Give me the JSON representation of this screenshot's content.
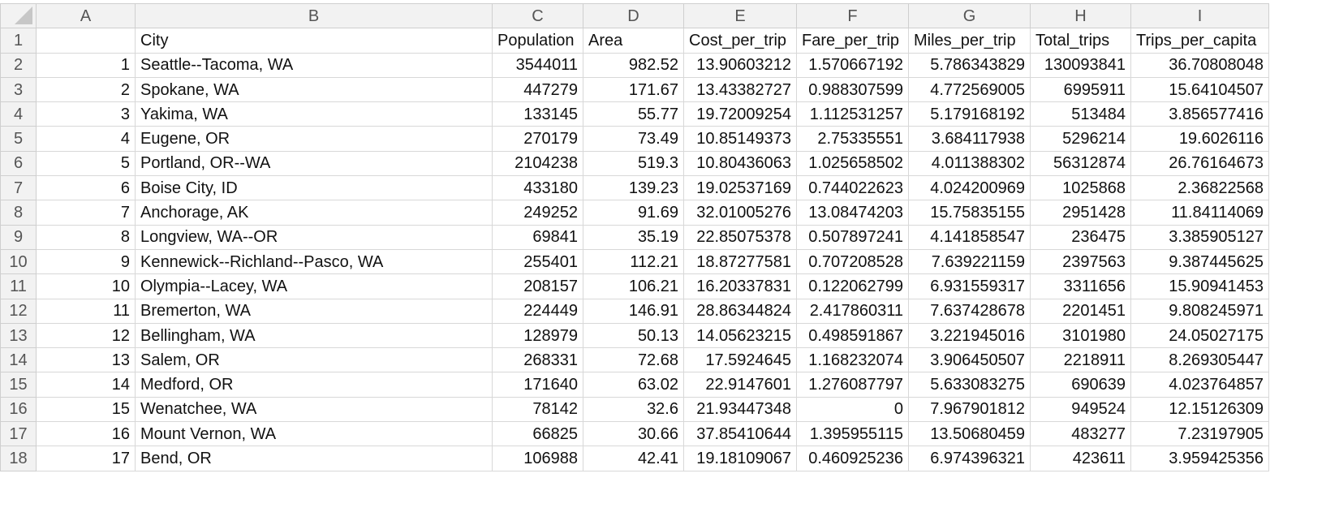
{
  "sheet": {
    "column_letters": [
      "A",
      "B",
      "C",
      "D",
      "E",
      "F",
      "G",
      "H",
      "I"
    ],
    "column_align": [
      "num",
      "txt",
      "num",
      "num",
      "num",
      "num",
      "num",
      "num",
      "num"
    ],
    "rows": [
      {
        "n": "1",
        "cells": [
          "",
          "City",
          "Population",
          "Area",
          "Cost_per_trip",
          "Fare_per_trip",
          "Miles_per_trip",
          "Total_trips",
          "Trips_per_capita"
        ],
        "header": true
      },
      {
        "n": "2",
        "cells": [
          "1",
          "Seattle--Tacoma, WA",
          "3544011",
          "982.52",
          "13.90603212",
          "1.570667192",
          "5.786343829",
          "130093841",
          "36.70808048"
        ]
      },
      {
        "n": "3",
        "cells": [
          "2",
          "Spokane, WA",
          "447279",
          "171.67",
          "13.43382727",
          "0.988307599",
          "4.772569005",
          "6995911",
          "15.64104507"
        ]
      },
      {
        "n": "4",
        "cells": [
          "3",
          "Yakima, WA",
          "133145",
          "55.77",
          "19.72009254",
          "1.112531257",
          "5.179168192",
          "513484",
          "3.856577416"
        ]
      },
      {
        "n": "5",
        "cells": [
          "4",
          "Eugene, OR",
          "270179",
          "73.49",
          "10.85149373",
          "2.75335551",
          "3.684117938",
          "5296214",
          "19.6026116"
        ]
      },
      {
        "n": "6",
        "cells": [
          "5",
          "Portland, OR--WA",
          "2104238",
          "519.3",
          "10.80436063",
          "1.025658502",
          "4.011388302",
          "56312874",
          "26.76164673"
        ]
      },
      {
        "n": "7",
        "cells": [
          "6",
          "Boise City, ID",
          "433180",
          "139.23",
          "19.02537169",
          "0.744022623",
          "4.024200969",
          "1025868",
          "2.36822568"
        ]
      },
      {
        "n": "8",
        "cells": [
          "7",
          "Anchorage, AK",
          "249252",
          "91.69",
          "32.01005276",
          "13.08474203",
          "15.75835155",
          "2951428",
          "11.84114069"
        ]
      },
      {
        "n": "9",
        "cells": [
          "8",
          "Longview, WA--OR",
          "69841",
          "35.19",
          "22.85075378",
          "0.507897241",
          "4.141858547",
          "236475",
          "3.385905127"
        ]
      },
      {
        "n": "10",
        "cells": [
          "9",
          "Kennewick--Richland--Pasco, WA",
          "255401",
          "112.21",
          "18.87277581",
          "0.707208528",
          "7.639221159",
          "2397563",
          "9.387445625"
        ]
      },
      {
        "n": "11",
        "cells": [
          "10",
          "Olympia--Lacey, WA",
          "208157",
          "106.21",
          "16.20337831",
          "0.122062799",
          "6.931559317",
          "3311656",
          "15.90941453"
        ]
      },
      {
        "n": "12",
        "cells": [
          "11",
          "Bremerton, WA",
          "224449",
          "146.91",
          "28.86344824",
          "2.417860311",
          "7.637428678",
          "2201451",
          "9.808245971"
        ]
      },
      {
        "n": "13",
        "cells": [
          "12",
          "Bellingham, WA",
          "128979",
          "50.13",
          "14.05623215",
          "0.498591867",
          "3.221945016",
          "3101980",
          "24.05027175"
        ]
      },
      {
        "n": "14",
        "cells": [
          "13",
          "Salem, OR",
          "268331",
          "72.68",
          "17.5924645",
          "1.168232074",
          "3.906450507",
          "2218911",
          "8.269305447"
        ]
      },
      {
        "n": "15",
        "cells": [
          "14",
          "Medford, OR",
          "171640",
          "63.02",
          "22.9147601",
          "1.276087797",
          "5.633083275",
          "690639",
          "4.023764857"
        ]
      },
      {
        "n": "16",
        "cells": [
          "15",
          "Wenatchee, WA",
          "78142",
          "32.6",
          "21.93447348",
          "0",
          "7.967901812",
          "949524",
          "12.15126309"
        ]
      },
      {
        "n": "17",
        "cells": [
          "16",
          "Mount Vernon, WA",
          "66825",
          "30.66",
          "37.85410644",
          "1.395955115",
          "13.50680459",
          "483277",
          "7.23197905"
        ]
      },
      {
        "n": "18",
        "cells": [
          "17",
          "Bend, OR",
          "106988",
          "42.41",
          "19.18109067",
          "0.460925236",
          "6.974396321",
          "423611",
          "3.959425356"
        ]
      }
    ]
  }
}
